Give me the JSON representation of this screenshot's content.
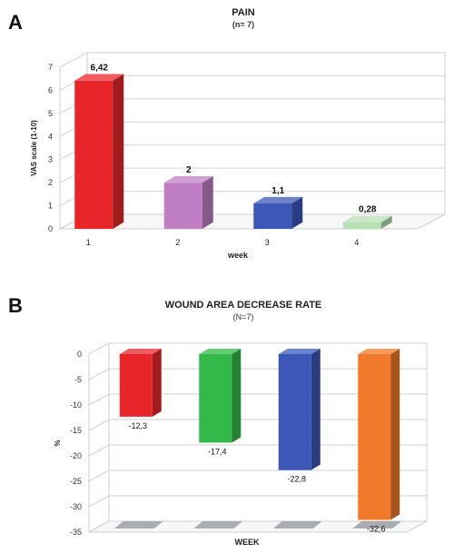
{
  "chart_data": [
    {
      "panel": "A",
      "type": "bar",
      "title": "PAIN",
      "subtitle": "(n= 7)",
      "xlabel": "week",
      "ylabel": "VAS scale (1-10)",
      "categories": [
        "1",
        "2",
        "3",
        "4"
      ],
      "values": [
        6.42,
        2,
        1.1,
        0.28
      ],
      "value_labels": [
        "6,42",
        "2",
        "1,1",
        "0,28"
      ],
      "colors": [
        "#e8262a",
        "#c07fc4",
        "#3b58b9",
        "#b7dfb4"
      ],
      "ylim": [
        0,
        7
      ],
      "yticks": [
        "0",
        "1",
        "2",
        "3",
        "4",
        "5",
        "6",
        "7"
      ],
      "grid": true
    },
    {
      "panel": "B",
      "type": "bar",
      "title": "WOUND AREA DECREASE RATE",
      "subtitle": "(N=7)",
      "xlabel": "WEEK",
      "ylabel": "%",
      "categories": [
        "",
        "",
        "",
        ""
      ],
      "values": [
        -12.3,
        -17.4,
        -22.8,
        -32.6
      ],
      "value_labels": [
        "-12,3",
        "-17,4",
        "-22,8",
        "-32,6"
      ],
      "colors": [
        "#e8262a",
        "#33b84a",
        "#3b58b9",
        "#f07a2a"
      ],
      "ylim": [
        -35,
        0
      ],
      "yticks": [
        "0",
        "-5",
        "-10",
        "-15",
        "-20",
        "-25",
        "-30",
        "-35"
      ],
      "grid": true
    }
  ]
}
